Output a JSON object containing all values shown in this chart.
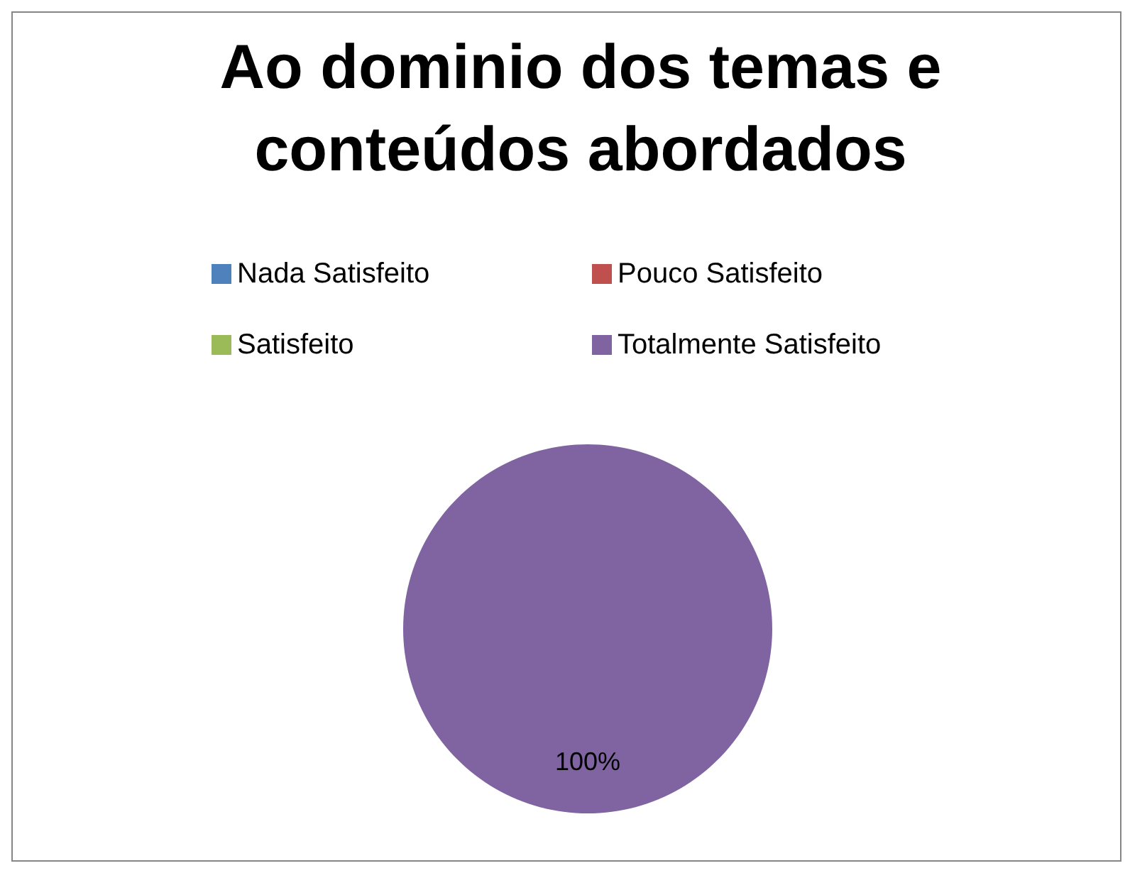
{
  "chart_data": {
    "type": "pie",
    "title": "Ao dominio dos temas e conteúdos abordados",
    "categories": [
      "Nada Satisfeito",
      "Pouco Satisfeito",
      "Satisfeito",
      "Totalmente Satisfeito"
    ],
    "values": [
      0,
      0,
      0,
      100
    ],
    "colors": [
      "#4f81bd",
      "#c0504d",
      "#9bbb59",
      "#8064a2"
    ],
    "value_labels": [
      null,
      null,
      null,
      "100%"
    ],
    "legend": "top"
  }
}
